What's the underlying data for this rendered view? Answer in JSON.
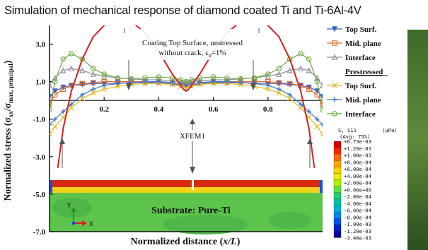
{
  "title": "Simulation of mechanical response of diamond coated Ti and Ti-6Al-4V",
  "chart_data": {
    "type": "line",
    "xlabel": "Normalized distance (x/L)",
    "ylabel": "Normalized stress (σxx/σmax, principal)",
    "xlim": [
      0,
      1
    ],
    "ylim": [
      -7,
      4
    ],
    "x_ticks": [
      "0.2",
      "0.4",
      "0.6",
      "0.8"
    ],
    "y_ticks": [
      "3.0",
      "1.0",
      "-1.0",
      "-3.0",
      "-5.0",
      "-7.0"
    ],
    "series": [
      {
        "name": "Top Surf.",
        "group": "unstressed",
        "color": "#3a5fc8",
        "marker": "triangle-down",
        "x": [
          0,
          0.02,
          0.05,
          0.08,
          0.12,
          0.16,
          0.2,
          0.25,
          0.3,
          0.35,
          0.4,
          0.45,
          0.48,
          0.5,
          0.52,
          0.55,
          0.6,
          0.65,
          0.7,
          0.75,
          0.8,
          0.84,
          0.88,
          0.92,
          0.95,
          0.98,
          1
        ],
        "y": [
          0.2,
          0.5,
          0.7,
          0.8,
          0.85,
          0.9,
          0.9,
          0.92,
          0.95,
          0.95,
          0.95,
          0.9,
          0.8,
          0.75,
          0.8,
          0.9,
          0.95,
          0.95,
          0.95,
          0.92,
          0.9,
          0.9,
          0.85,
          0.8,
          0.7,
          0.5,
          0.2
        ]
      },
      {
        "name": "Mid. plane",
        "group": "unstressed",
        "color": "#e06a2a",
        "marker": "square-open",
        "x": [
          0,
          0.02,
          0.05,
          0.08,
          0.12,
          0.16,
          0.2,
          0.25,
          0.3,
          0.35,
          0.4,
          0.45,
          0.48,
          0.5,
          0.52,
          0.55,
          0.6,
          0.65,
          0.7,
          0.75,
          0.8,
          0.84,
          0.88,
          0.92,
          0.95,
          0.98,
          1
        ],
        "y": [
          -0.2,
          0.3,
          0.6,
          0.8,
          0.9,
          0.95,
          1.0,
          1.0,
          1.0,
          1.0,
          1.0,
          0.95,
          0.9,
          0.85,
          0.9,
          0.95,
          1.0,
          1.0,
          1.0,
          1.0,
          1.0,
          0.95,
          0.9,
          0.8,
          0.6,
          0.3,
          -0.2
        ]
      },
      {
        "name": "Interface",
        "group": "unstressed",
        "color": "#8c8c9c",
        "marker": "triangle-open",
        "x": [
          0,
          0.02,
          0.05,
          0.08,
          0.12,
          0.16,
          0.2,
          0.25,
          0.3,
          0.35,
          0.4,
          0.45,
          0.48,
          0.5,
          0.52,
          0.55,
          0.6,
          0.65,
          0.7,
          0.75,
          0.8,
          0.84,
          0.88,
          0.92,
          0.95,
          0.98,
          1
        ],
        "y": [
          0.8,
          1.2,
          1.6,
          1.7,
          1.6,
          1.4,
          1.3,
          1.2,
          1.15,
          1.1,
          1.1,
          1.05,
          1.0,
          0.95,
          1.0,
          1.05,
          1.1,
          1.1,
          1.15,
          1.2,
          1.3,
          1.4,
          1.6,
          1.7,
          1.6,
          1.2,
          0.8
        ]
      },
      {
        "name": "Top Surf.",
        "group": "Prestressed",
        "color": "#e8b820",
        "marker": "x",
        "x": [
          0,
          0.02,
          0.05,
          0.08,
          0.12,
          0.16,
          0.2,
          0.25,
          0.3,
          0.35,
          0.4,
          0.45,
          0.48,
          0.5,
          0.52,
          0.55,
          0.6,
          0.65,
          0.7,
          0.75,
          0.8,
          0.84,
          0.88,
          0.92,
          0.95,
          0.98,
          1
        ],
        "y": [
          -1.8,
          -1.4,
          -0.9,
          -0.4,
          0.1,
          0.4,
          0.6,
          0.75,
          0.85,
          0.9,
          0.9,
          0.85,
          0.75,
          0.65,
          0.75,
          0.85,
          0.9,
          0.9,
          0.85,
          0.75,
          0.6,
          0.4,
          0.1,
          -0.4,
          -0.9,
          -1.4,
          -1.8
        ]
      },
      {
        "name": "Mid. plane",
        "group": "Prestressed",
        "color": "#3b78c8",
        "marker": "plus",
        "x": [
          0,
          0.02,
          0.05,
          0.08,
          0.12,
          0.16,
          0.2,
          0.25,
          0.3,
          0.35,
          0.4,
          0.45,
          0.48,
          0.5,
          0.52,
          0.55,
          0.6,
          0.65,
          0.7,
          0.75,
          0.8,
          0.84,
          0.88,
          0.92,
          0.95,
          0.98,
          1
        ],
        "y": [
          -1.3,
          -1.0,
          -0.6,
          -0.2,
          0.3,
          0.6,
          0.8,
          0.9,
          0.95,
          1.0,
          1.0,
          0.95,
          0.9,
          0.85,
          0.9,
          0.95,
          1.0,
          1.0,
          0.95,
          0.9,
          0.8,
          0.6,
          0.3,
          -0.2,
          -0.6,
          -1.0,
          -1.3
        ]
      },
      {
        "name": "Interface",
        "group": "Prestressed",
        "color": "#6aaa3c",
        "marker": "circle-open",
        "x": [
          0,
          0.02,
          0.05,
          0.08,
          0.12,
          0.16,
          0.2,
          0.25,
          0.3,
          0.35,
          0.4,
          0.45,
          0.48,
          0.5,
          0.52,
          0.55,
          0.6,
          0.65,
          0.7,
          0.75,
          0.8,
          0.84,
          0.88,
          0.92,
          0.95,
          0.98,
          1
        ],
        "y": [
          -0.5,
          1.0,
          2.2,
          2.5,
          2.2,
          1.7,
          1.4,
          1.2,
          1.15,
          1.2,
          1.25,
          1.2,
          1.1,
          1.0,
          1.1,
          1.2,
          1.25,
          1.2,
          1.15,
          1.2,
          1.4,
          1.7,
          2.2,
          2.5,
          2.2,
          1.0,
          -0.5
        ]
      },
      {
        "name": "",
        "group": "XFEM1",
        "color": "#d42020",
        "marker": "none",
        "x": [
          0.03,
          0.05,
          0.08,
          0.12,
          0.16,
          0.2,
          0.25,
          0.3,
          0.35,
          0.4,
          0.45,
          0.48,
          0.49,
          0.5,
          0.51,
          0.52,
          0.55,
          0.6,
          0.65,
          0.7,
          0.75,
          0.8,
          0.84,
          0.88,
          0.92,
          0.95,
          0.97
        ],
        "y": [
          -3.6,
          -1.5,
          0.5,
          2.2,
          3.4,
          4.0,
          4.4,
          4.2,
          3.6,
          2.6,
          1.4,
          0.8,
          0.6,
          0.5,
          0.6,
          0.8,
          1.4,
          2.6,
          3.6,
          4.2,
          4.4,
          4.0,
          3.4,
          2.2,
          0.5,
          -1.5,
          -3.6
        ]
      }
    ],
    "annotations": {
      "coating_line1": "Coating Top Surface, unstressed",
      "coating_line2": "without crack, ε",
      "coating_sub": "o",
      "coating_tail": "=1%",
      "xfem": "XFEM1",
      "substrate": "Substrate: Pure-Ti"
    },
    "legend": {
      "heading_top": "Top Surf.",
      "entries_unstressed": [
        "Mid. plane",
        "Interface"
      ],
      "heading": "Prestressed",
      "entries_prestressed": [
        "Top Surf.",
        "Mid. plane",
        "Interface"
      ]
    },
    "colorbar": {
      "title": "S, S11",
      "unit": "(μPa)",
      "avg": "(Avg: 75%)",
      "labels": [
        "+6.73e-03",
        "+1.20e-03",
        "+1.00e-03",
        "+8.00e-04",
        "+6.00e-04",
        "+4.00e-04",
        "+2.00e-04",
        "+0.00e+00",
        "-2.00e-04",
        "-4.00e-04",
        "-6.00e-04",
        "-8.00e-04",
        "-1.00e-03",
        "-1.20e-03",
        "-3.46e-03"
      ],
      "colors": [
        "#d40000",
        "#ff2000",
        "#ff6a00",
        "#ffa500",
        "#ffd000",
        "#e8f000",
        "#b0f000",
        "#60e040",
        "#20d070",
        "#00c0a0",
        "#00b0d8",
        "#0088f0",
        "#0050f0",
        "#0020d0",
        "#0000a0"
      ]
    },
    "grid": false,
    "legend_placement": "right"
  }
}
